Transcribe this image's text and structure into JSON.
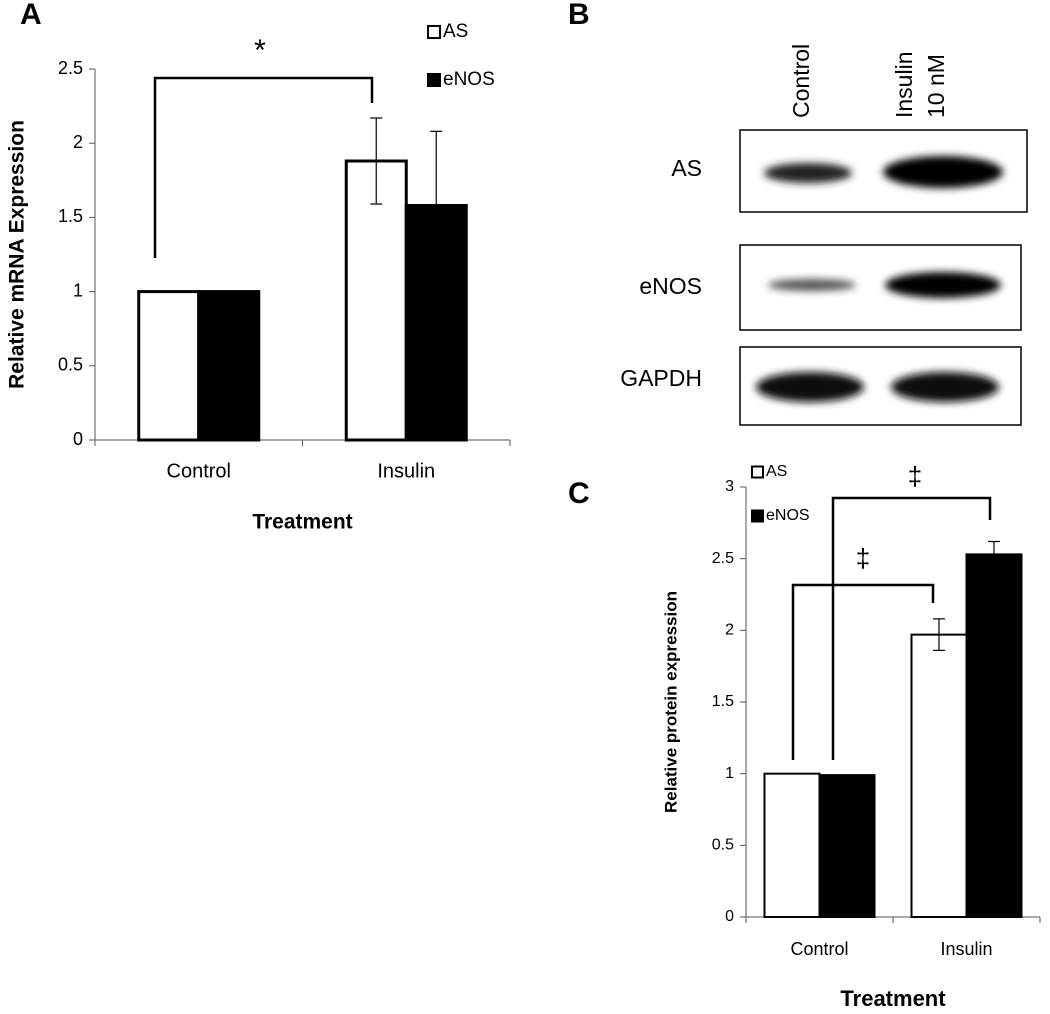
{
  "chart_data": [
    {
      "type": "bar",
      "panel": "A",
      "ylabel": "Relative mRNA Expression",
      "xlabel": "Treatment",
      "categories": [
        "Control",
        "Insulin"
      ],
      "series": [
        {
          "name": "AS",
          "color": "#ffffff",
          "values": [
            1,
            1.88
          ],
          "errors": [
            0,
            0.29
          ]
        },
        {
          "name": "eNOS",
          "color": "#000000",
          "values": [
            1,
            1.58
          ],
          "errors": [
            0,
            0.5
          ]
        }
      ],
      "ylim": [
        0,
        2.5
      ],
      "yticks": [
        0,
        0.5,
        1,
        1.5,
        2,
        2.5
      ],
      "annotations": [
        "*"
      ]
    },
    {
      "type": "bar",
      "panel": "C",
      "ylabel": "Relative protein expression",
      "xlabel": "Treatment",
      "categories": [
        "Control",
        "Insulin"
      ],
      "series": [
        {
          "name": "AS",
          "color": "#ffffff",
          "values": [
            1,
            1.97
          ],
          "errors": [
            0,
            0.11
          ]
        },
        {
          "name": "eNOS",
          "color": "#000000",
          "values": [
            0.99,
            2.53
          ],
          "errors": [
            0,
            0.09
          ]
        }
      ],
      "ylim": [
        0,
        3
      ],
      "yticks": [
        0,
        0.5,
        1,
        1.5,
        2,
        2.5,
        3
      ],
      "annotations": [
        "‡",
        "‡"
      ]
    }
  ],
  "blot": {
    "panel": "B",
    "columns": [
      {
        "lines": [
          "Control"
        ]
      },
      {
        "lines": [
          "Insulin",
          "10 nM"
        ]
      }
    ],
    "rows": [
      "AS",
      "eNOS",
      "GAPDH"
    ]
  }
}
